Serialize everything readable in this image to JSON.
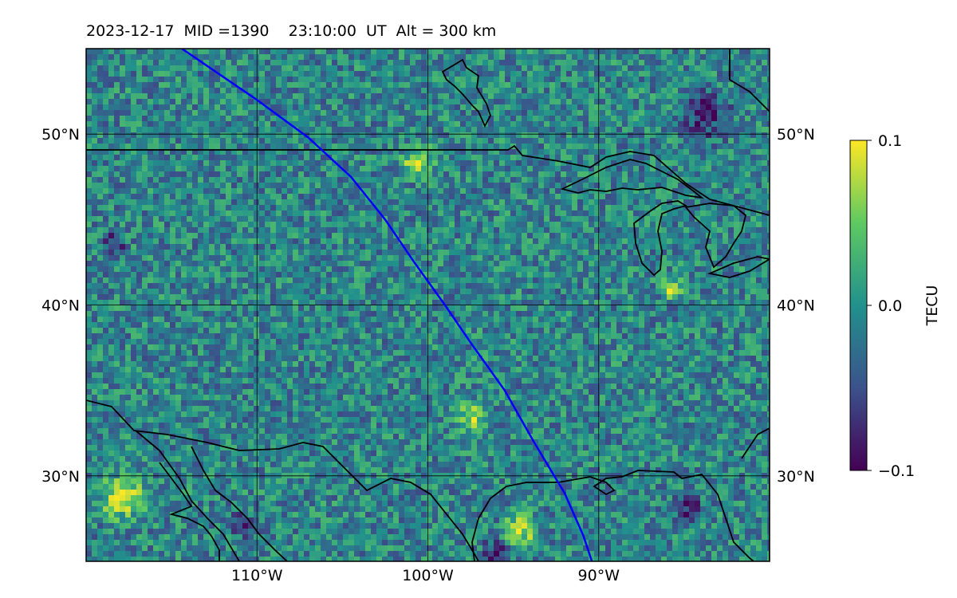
{
  "title": {
    "date": "2023-12-17",
    "mid": "MID =1390",
    "time": "23:10:00  UT",
    "alt": "Alt = 300 km"
  },
  "map": {
    "lon_range": [
      -120,
      -80
    ],
    "lat_range": [
      25,
      55
    ],
    "lon_ticks": [
      {
        "value": -110,
        "label": "110°W"
      },
      {
        "value": -100,
        "label": "100°W"
      },
      {
        "value": -90,
        "label": "90°W"
      }
    ],
    "lat_ticks": [
      {
        "value": 50,
        "label": "50°N"
      },
      {
        "value": 40,
        "label": "40°N"
      },
      {
        "value": 30,
        "label": "30°N"
      }
    ],
    "field": "TEC anomaly (gridded heatmap, viridis colormap)",
    "satellite_track": {
      "color": "#0000ff",
      "points": [
        [
          -114.4,
          55
        ],
        [
          -110,
          52
        ],
        [
          -107,
          49.8
        ],
        [
          -104.5,
          47.5
        ],
        [
          -102.5,
          45
        ],
        [
          -100.8,
          42.5
        ],
        [
          -99,
          40
        ],
        [
          -97.5,
          37.8
        ],
        [
          -95.5,
          35
        ],
        [
          -93.8,
          32
        ],
        [
          -92,
          29
        ],
        [
          -90.9,
          26.5
        ],
        [
          -90.4,
          25
        ]
      ]
    },
    "coastline_color": "#000000"
  },
  "colorbar": {
    "label": "TECU",
    "min": -0.1,
    "max": 0.1,
    "ticks": [
      {
        "value": 0.1,
        "label": "0.1"
      },
      {
        "value": 0.0,
        "label": "0.0"
      },
      {
        "value": -0.1,
        "label": "−0.1"
      }
    ],
    "colormap": [
      "#440154",
      "#3b528b",
      "#21918c",
      "#5ec962",
      "#fde725"
    ]
  }
}
